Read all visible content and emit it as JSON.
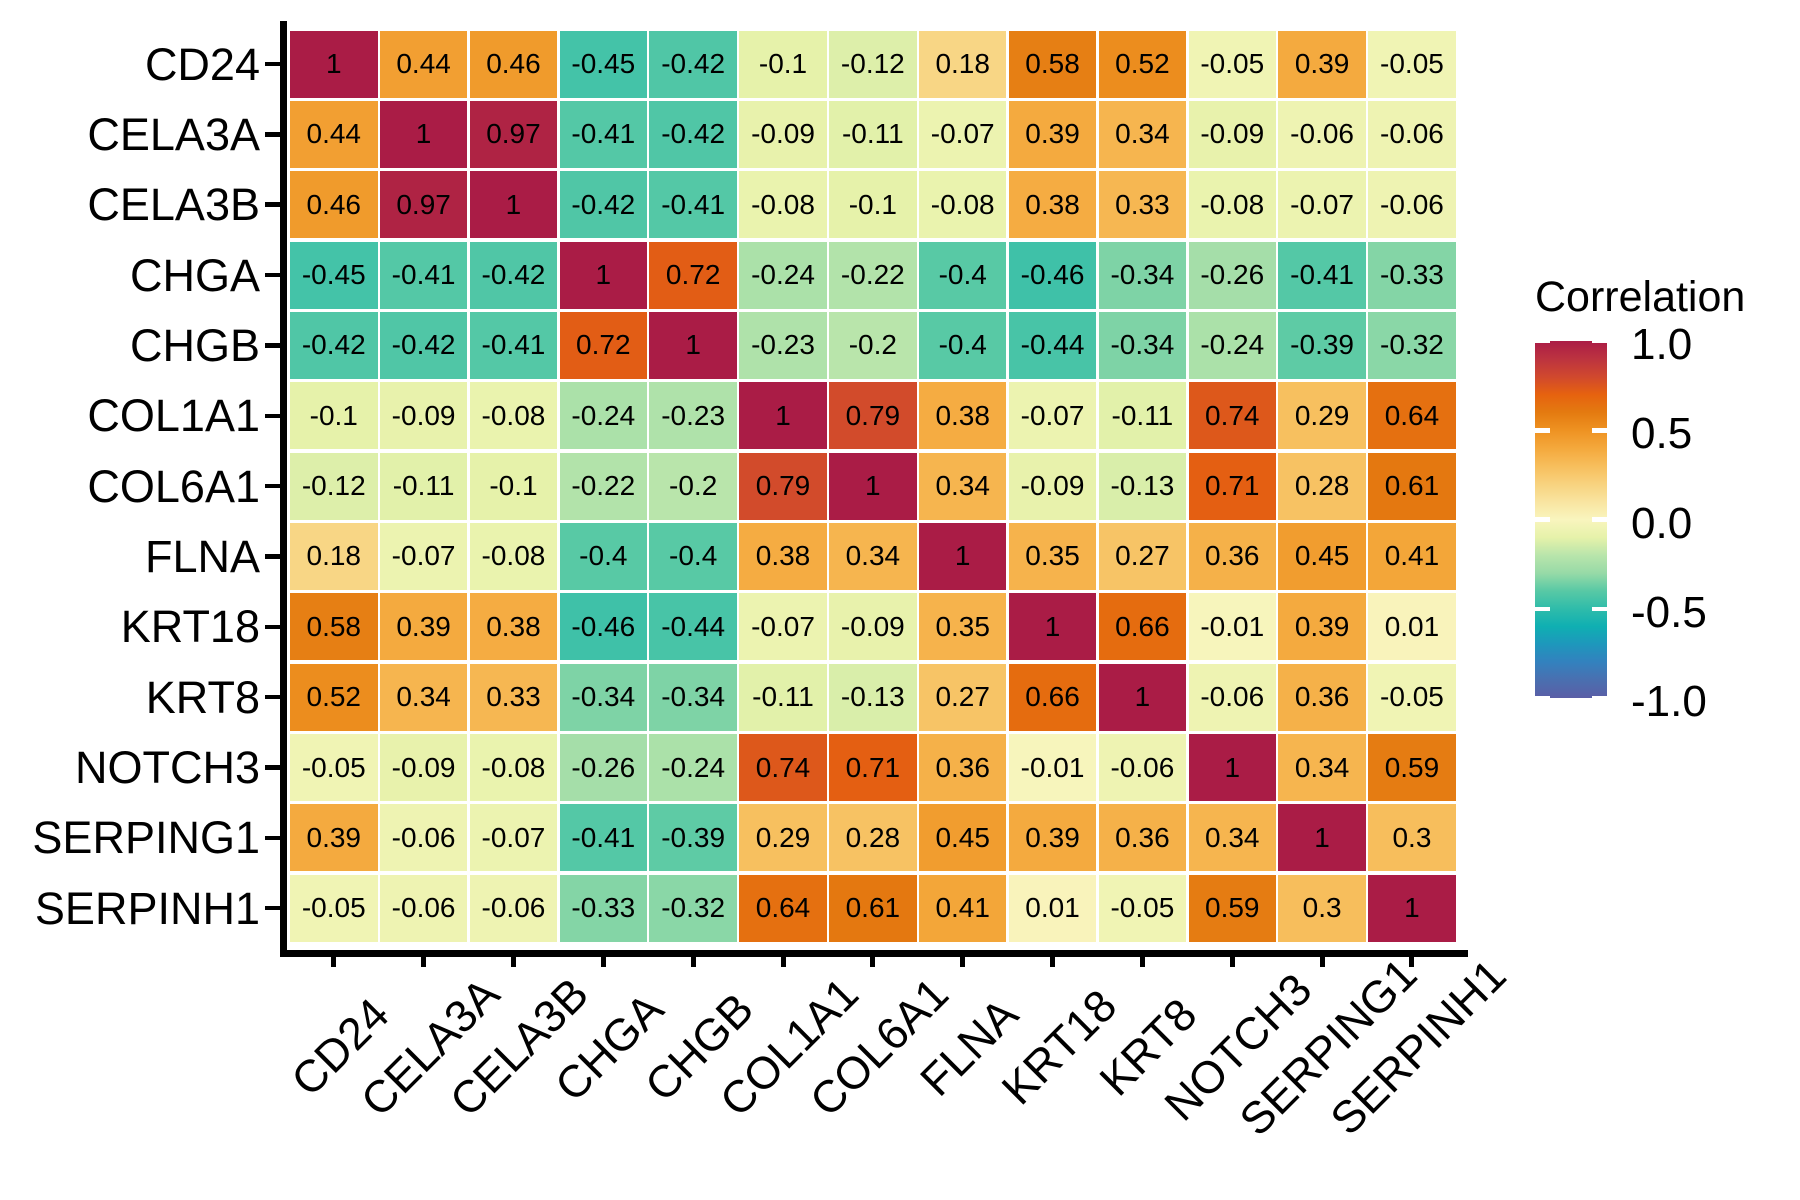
{
  "chart_data": {
    "type": "heatmap",
    "title": "",
    "categories": [
      "CD24",
      "CELA3A",
      "CELA3B",
      "CHGA",
      "CHGB",
      "COL1A1",
      "COL6A1",
      "FLNA",
      "KRT18",
      "KRT8",
      "NOTCH3",
      "SERPING1",
      "SERPINH1"
    ],
    "matrix": [
      [
        1,
        0.44,
        0.46,
        -0.45,
        -0.42,
        -0.1,
        -0.12,
        0.18,
        0.58,
        0.52,
        -0.05,
        0.39,
        -0.05
      ],
      [
        0.44,
        1,
        0.97,
        -0.41,
        -0.42,
        -0.09,
        -0.11,
        -0.07,
        0.39,
        0.34,
        -0.09,
        -0.06,
        -0.06
      ],
      [
        0.46,
        0.97,
        1,
        -0.42,
        -0.41,
        -0.08,
        -0.1,
        -0.08,
        0.38,
        0.33,
        -0.08,
        -0.07,
        -0.06
      ],
      [
        -0.45,
        -0.41,
        -0.42,
        1,
        0.72,
        -0.24,
        -0.22,
        -0.4,
        -0.46,
        -0.34,
        -0.26,
        -0.41,
        -0.33
      ],
      [
        -0.42,
        -0.42,
        -0.41,
        0.72,
        1,
        -0.23,
        -0.2,
        -0.4,
        -0.44,
        -0.34,
        -0.24,
        -0.39,
        -0.32
      ],
      [
        -0.1,
        -0.09,
        -0.08,
        -0.24,
        -0.23,
        1,
        0.79,
        0.38,
        -0.07,
        -0.11,
        0.74,
        0.29,
        0.64
      ],
      [
        -0.12,
        -0.11,
        -0.1,
        -0.22,
        -0.2,
        0.79,
        1,
        0.34,
        -0.09,
        -0.13,
        0.71,
        0.28,
        0.61
      ],
      [
        0.18,
        -0.07,
        -0.08,
        -0.4,
        -0.4,
        0.38,
        0.34,
        1,
        0.35,
        0.27,
        0.36,
        0.45,
        0.41
      ],
      [
        0.58,
        0.39,
        0.38,
        -0.46,
        -0.44,
        -0.07,
        -0.09,
        0.35,
        1,
        0.66,
        -0.01,
        0.39,
        0.01
      ],
      [
        0.52,
        0.34,
        0.33,
        -0.34,
        -0.34,
        -0.11,
        -0.13,
        0.27,
        0.66,
        1,
        -0.06,
        0.36,
        -0.05
      ],
      [
        -0.05,
        -0.09,
        -0.08,
        -0.26,
        -0.24,
        0.74,
        0.71,
        0.36,
        -0.01,
        -0.06,
        1,
        0.34,
        0.59
      ],
      [
        0.39,
        -0.06,
        -0.07,
        -0.41,
        -0.39,
        0.29,
        0.28,
        0.45,
        0.39,
        0.36,
        0.34,
        1,
        0.3
      ],
      [
        -0.05,
        -0.06,
        -0.06,
        -0.33,
        -0.32,
        0.64,
        0.61,
        0.41,
        0.01,
        -0.05,
        0.59,
        0.3,
        1
      ]
    ],
    "legend": {
      "title": "Correlation",
      "tick_labels": [
        "1.0",
        "0.5",
        "0.0",
        "-0.5",
        "-1.0"
      ],
      "tick_values": [
        1,
        0.5,
        0,
        -0.5,
        -1
      ],
      "range": [
        -1,
        1
      ],
      "position": "right"
    },
    "colormap_stops": [
      {
        "value": 1.0,
        "color": "#AA1C46"
      },
      {
        "value": 0.9,
        "color": "#BC3340"
      },
      {
        "value": 0.8,
        "color": "#D0482E"
      },
      {
        "value": 0.7,
        "color": "#E6620F"
      },
      {
        "value": 0.6,
        "color": "#E47A10"
      },
      {
        "value": 0.5,
        "color": "#EE9222"
      },
      {
        "value": 0.4,
        "color": "#F4A83C"
      },
      {
        "value": 0.3,
        "color": "#F7BE5C"
      },
      {
        "value": 0.2,
        "color": "#F8D27E"
      },
      {
        "value": 0.1,
        "color": "#F9E4A0"
      },
      {
        "value": 0.0,
        "color": "#F9F5BE"
      },
      {
        "value": -0.1,
        "color": "#E6F2AA"
      },
      {
        "value": -0.2,
        "color": "#B9E5AB"
      },
      {
        "value": -0.3,
        "color": "#97DAA7"
      },
      {
        "value": -0.4,
        "color": "#58C9A5"
      },
      {
        "value": -0.5,
        "color": "#2FBCAA"
      },
      {
        "value": -0.6,
        "color": "#0FAFB2"
      },
      {
        "value": -0.7,
        "color": "#1E97BC"
      },
      {
        "value": -0.8,
        "color": "#3381BE"
      },
      {
        "value": -0.9,
        "color": "#4A6FB0"
      },
      {
        "value": -1.0,
        "color": "#5A5EA6"
      }
    ],
    "grid": false,
    "cell_text_color": "#000000",
    "axis_color": "#000000",
    "background_color": "#FFFFFF"
  }
}
